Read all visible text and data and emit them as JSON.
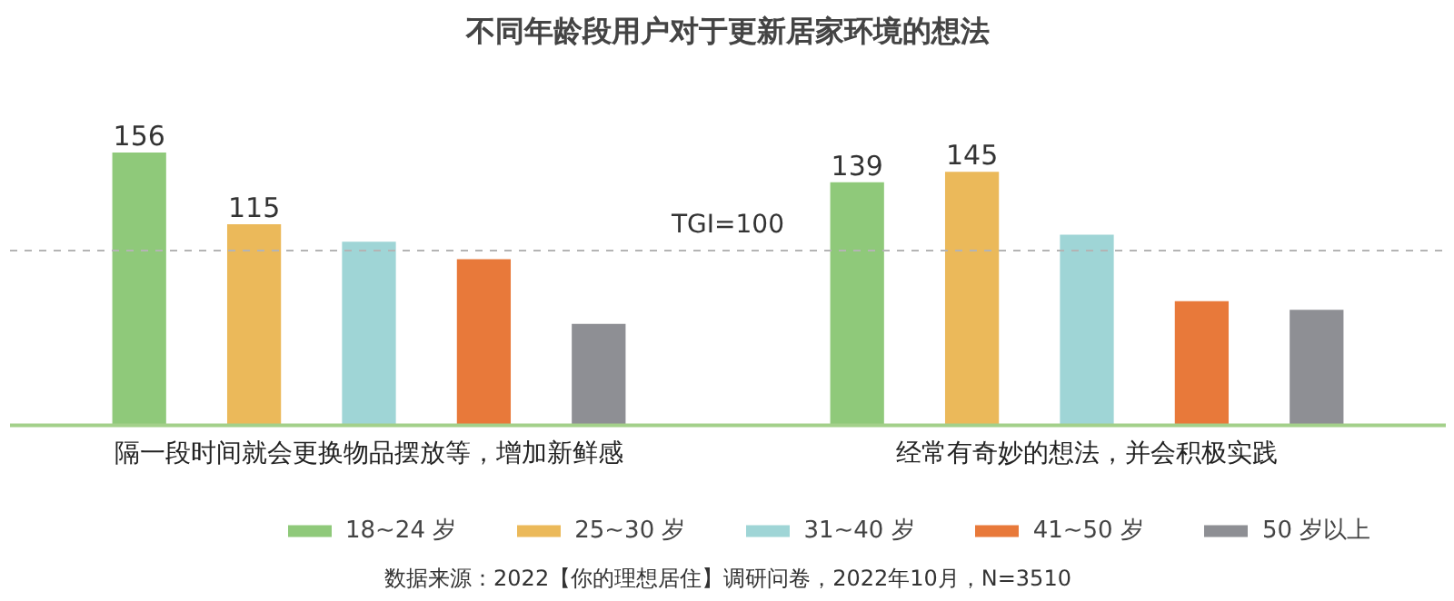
{
  "chart_data": {
    "type": "bar",
    "title": "不同年龄段用户对于更新居家环境的想法",
    "categories": [
      "隔一段时间就会更换物品摆放等，增加新鲜感",
      "经常有奇妙的想法，并会积极实践"
    ],
    "series": [
      {
        "name": "18~24 岁",
        "color": "#8fc97a",
        "values": [
          156,
          139
        ],
        "value_labels": [
          "156",
          "139"
        ]
      },
      {
        "name": "25~30 岁",
        "color": "#ebb95a",
        "values": [
          115,
          145
        ],
        "value_labels": [
          "115",
          "145"
        ]
      },
      {
        "name": "31~40 岁",
        "color": "#9fd5d6",
        "values": [
          105,
          109
        ],
        "value_labels": [
          null,
          null
        ]
      },
      {
        "name": "41~50 岁",
        "color": "#e8793a",
        "values": [
          95,
          71
        ],
        "value_labels": [
          null,
          null
        ]
      },
      {
        "name": "50 岁以上",
        "color": "#8e8f94",
        "values": [
          58,
          66
        ],
        "value_labels": [
          null,
          null
        ]
      }
    ],
    "ref_lines": [
      {
        "axis": "y",
        "value": 100,
        "label": "TGI=100",
        "color": "#b4b4b4",
        "line_style": "dashed"
      }
    ],
    "legend": "bottom",
    "annotations": [
      "数据来源：2022【你的理想居住】调研问卷，2022年10月，N=3510"
    ]
  }
}
